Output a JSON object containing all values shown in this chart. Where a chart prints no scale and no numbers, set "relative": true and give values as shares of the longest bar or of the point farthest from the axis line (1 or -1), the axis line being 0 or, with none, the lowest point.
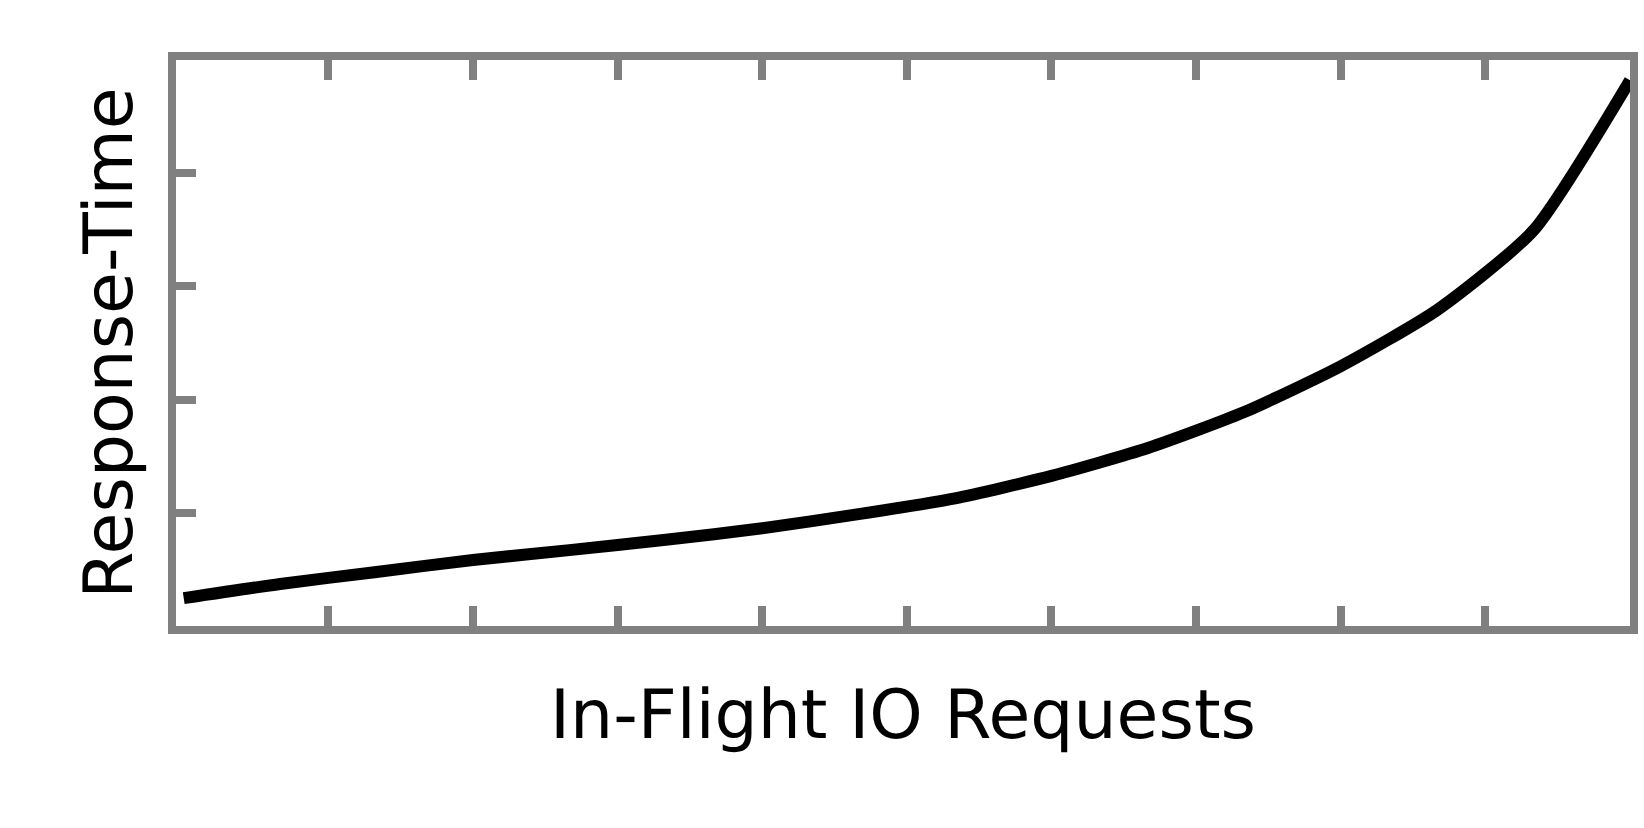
{
  "chart_data": {
    "type": "line",
    "relative": true,
    "xlabel": "In-Flight IO Requests",
    "ylabel": "Response-Time",
    "categories": [
      null,
      null,
      null,
      null,
      null,
      null,
      null,
      null,
      null,
      null,
      null,
      null,
      null,
      null,
      null,
      null
    ],
    "series": [
      {
        "color": "#000000",
        "values": [
          0.051,
          0.077,
          0.099,
          0.121,
          0.139,
          0.158,
          0.179,
          0.205,
          0.234,
          0.275,
          0.326,
          0.392,
          0.476,
          0.579,
          0.725,
          1
        ]
      }
    ],
    "marker": "none",
    "line_style": "solid",
    "tick_labels": false
  }
}
